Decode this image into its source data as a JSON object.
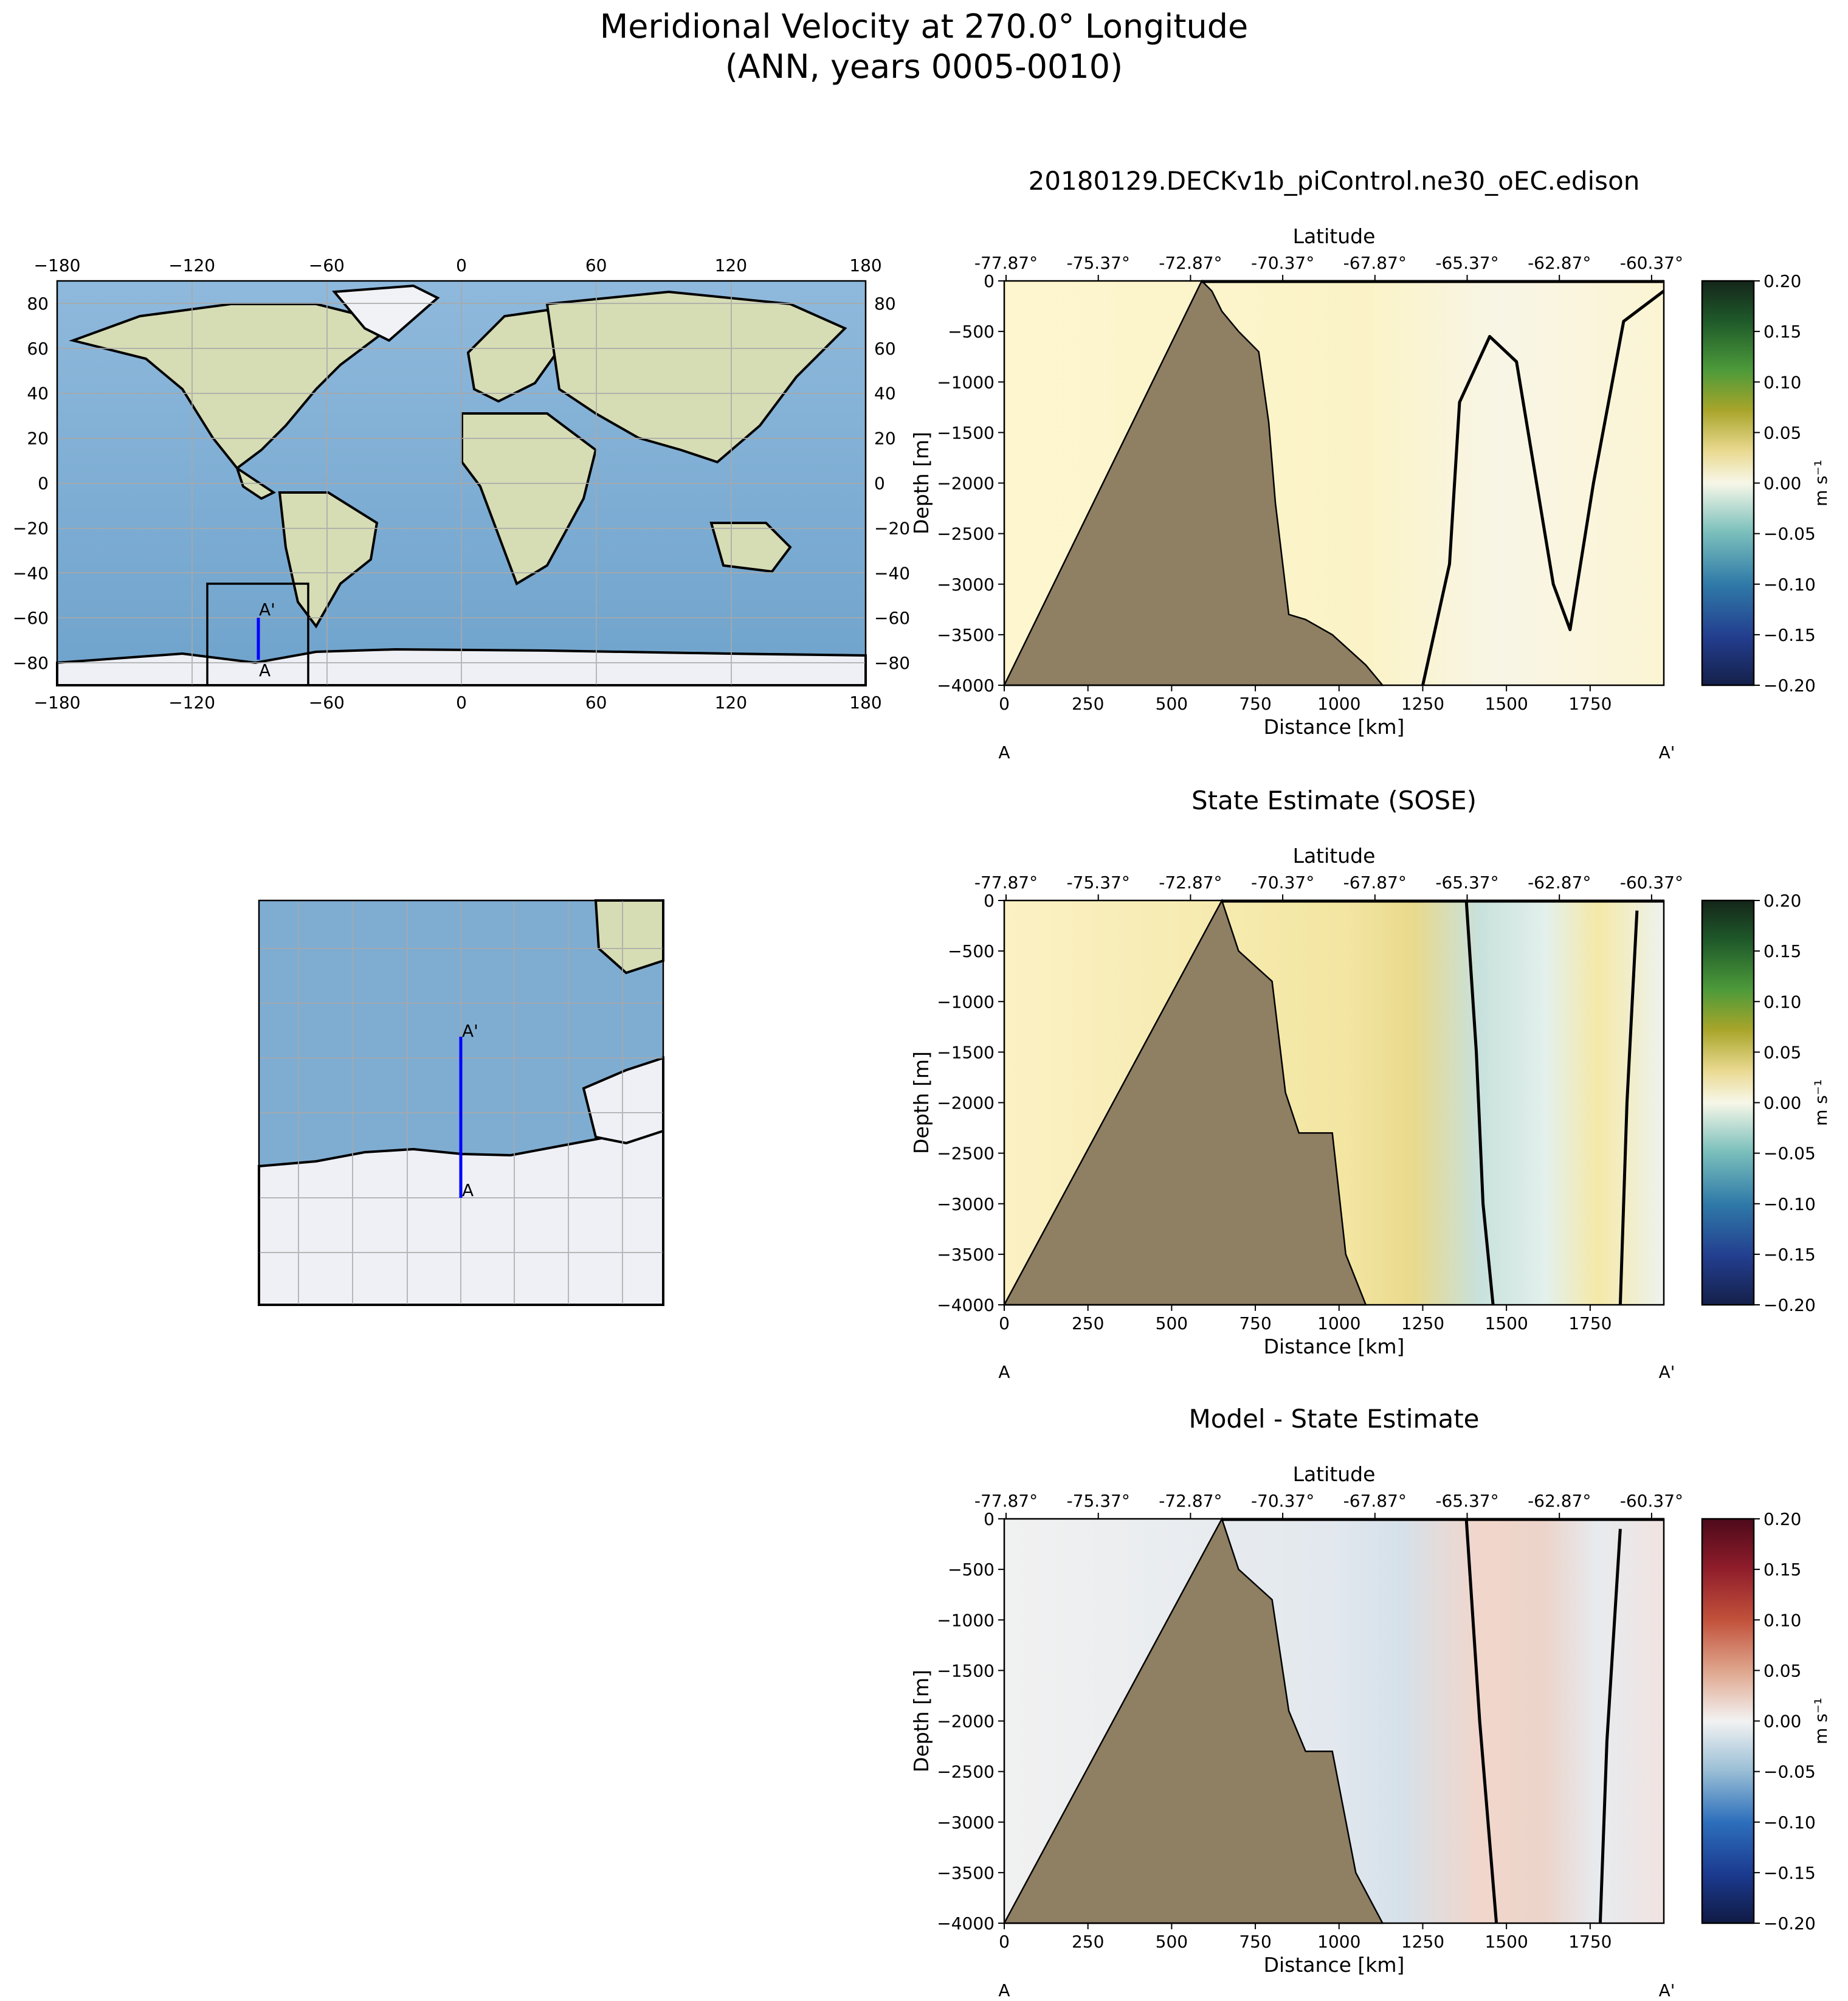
{
  "figure": {
    "title_line1": "Meridional Velocity at 270.0° Longitude",
    "title_line2": "(ANN, years 0005-0010)"
  },
  "overview_map": {
    "lon_ticks": [
      "−180",
      "−120",
      "−60",
      "0",
      "60",
      "120",
      "180"
    ],
    "lat_ticks": [
      "80",
      "60",
      "40",
      "20",
      "0",
      "−20",
      "−40",
      "−60",
      "−80"
    ],
    "point_a": "A",
    "point_b": "A'"
  },
  "inset_map": {
    "point_a": "A",
    "point_b": "A'"
  },
  "panels": [
    {
      "title": "20180129.DECKv1b_piControl.ne30_oEC.edison",
      "colorbar": "model"
    },
    {
      "title": "State Estimate (SOSE)",
      "colorbar": "model"
    },
    {
      "title": "Model - State Estimate",
      "colorbar": "diff"
    }
  ],
  "section_axes": {
    "top_label": "Latitude",
    "xlabel": "Distance [km]",
    "ylabel": "Depth [m]",
    "lat_ticks": [
      "-77.87°",
      "-75.37°",
      "-72.87°",
      "-70.37°",
      "-67.87°",
      "-65.37°",
      "-62.87°",
      "-60.37°"
    ],
    "dist_ticks": [
      "0",
      "250",
      "500",
      "750",
      "1000",
      "1250",
      "1500",
      "1750"
    ],
    "depth_ticks": [
      "0",
      "−500",
      "−1000",
      "−1500",
      "−2000",
      "−2500",
      "−3000",
      "−3500",
      "−4000"
    ],
    "end_a": "A",
    "end_b": "A'"
  },
  "colorbar": {
    "unit": "m s⁻¹",
    "ticks": [
      "0.20",
      "0.15",
      "0.10",
      "0.05",
      "0.00",
      "−0.05",
      "−0.10",
      "−0.15",
      "−0.20"
    ]
  },
  "colors": {
    "land": "#8f7f63",
    "ocean": "#7fadd2",
    "ice": "#eef0f5",
    "section_line": "#0000ff"
  },
  "chart_data": [
    {
      "type": "heatmap",
      "title": "20180129.DECKv1b_piControl.ne30_oEC.edison",
      "xlabel": "Distance [km]",
      "ylabel": "Depth [m]",
      "xlim": [
        0,
        1970
      ],
      "ylim": [
        -4000,
        0
      ],
      "clim": [
        -0.2,
        0.2
      ],
      "colorbar_label": "m s⁻¹",
      "bathymetry_km_depth": [
        [
          0,
          -4000
        ],
        [
          590,
          0
        ],
        [
          620,
          -100
        ],
        [
          650,
          -300
        ],
        [
          700,
          -500
        ],
        [
          760,
          -700
        ],
        [
          790,
          -1400
        ],
        [
          810,
          -2200
        ],
        [
          850,
          -3300
        ],
        [
          900,
          -3350
        ],
        [
          980,
          -3500
        ],
        [
          1080,
          -3800
        ],
        [
          1130,
          -4000
        ]
      ],
      "zero_contours_km_depth": [
        [
          [
            1250,
            -4000
          ],
          [
            1330,
            -2800
          ],
          [
            1360,
            -1200
          ],
          [
            1450,
            -550
          ],
          [
            1530,
            -800
          ],
          [
            1640,
            -3000
          ],
          [
            1690,
            -3450
          ],
          [
            1760,
            -2000
          ],
          [
            1850,
            -400
          ],
          [
            1970,
            -100
          ]
        ]
      ],
      "typical_value": 0.01
    },
    {
      "type": "heatmap",
      "title": "State Estimate (SOSE)",
      "xlabel": "Distance [km]",
      "ylabel": "Depth [m]",
      "xlim": [
        0,
        1970
      ],
      "ylim": [
        -4000,
        0
      ],
      "clim": [
        -0.2,
        0.2
      ],
      "colorbar_label": "m s⁻¹",
      "bathymetry_km_depth": [
        [
          0,
          -4000
        ],
        [
          650,
          0
        ],
        [
          700,
          -500
        ],
        [
          800,
          -800
        ],
        [
          840,
          -1900
        ],
        [
          880,
          -2300
        ],
        [
          980,
          -2300
        ],
        [
          1020,
          -3500
        ],
        [
          1080,
          -4000
        ]
      ],
      "zero_contours_km_depth": [
        [
          [
            1380,
            0
          ],
          [
            1410,
            -1500
          ],
          [
            1430,
            -3000
          ],
          [
            1460,
            -4000
          ]
        ],
        [
          [
            1890,
            -100
          ],
          [
            1860,
            -2000
          ],
          [
            1840,
            -4000
          ]
        ]
      ],
      "typical_value": 0.02
    },
    {
      "type": "heatmap",
      "title": "Model - State Estimate",
      "xlabel": "Distance [km]",
      "ylabel": "Depth [m]",
      "xlim": [
        0,
        1970
      ],
      "ylim": [
        -4000,
        0
      ],
      "clim": [
        -0.2,
        0.2
      ],
      "colorbar_label": "m s⁻¹",
      "bathymetry_km_depth": [
        [
          0,
          -4000
        ],
        [
          650,
          0
        ],
        [
          700,
          -500
        ],
        [
          800,
          -800
        ],
        [
          850,
          -1900
        ],
        [
          900,
          -2300
        ],
        [
          980,
          -2300
        ],
        [
          1050,
          -3500
        ],
        [
          1130,
          -4000
        ]
      ],
      "zero_contours_km_depth": [
        [
          [
            1380,
            0
          ],
          [
            1420,
            -2000
          ],
          [
            1470,
            -4000
          ]
        ],
        [
          [
            1840,
            -100
          ],
          [
            1800,
            -2200
          ],
          [
            1780,
            -4000
          ]
        ]
      ],
      "typical_value": 0.02
    }
  ]
}
